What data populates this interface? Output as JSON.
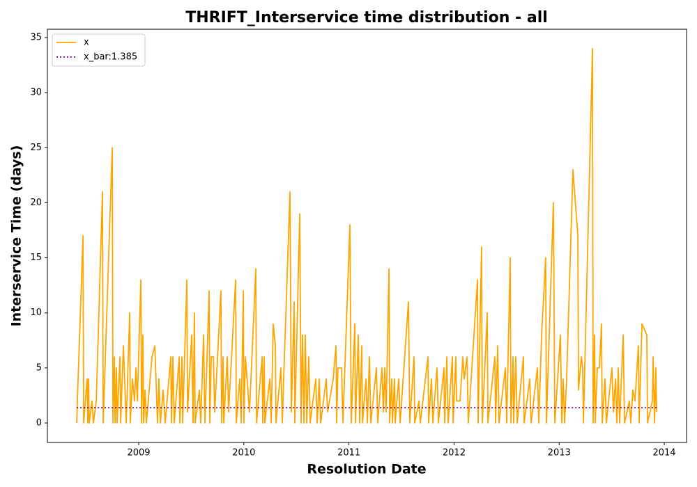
{
  "chart_data": {
    "type": "line",
    "title": "THRIFT_Interservice time distribution - all",
    "xlabel": "Resolution Date",
    "ylabel": "Interservice Time (days)",
    "xlim": [
      2008.131,
      2014.212
    ],
    "ylim": [
      -1.77,
      35.76
    ],
    "xticks": [
      2009,
      2010,
      2011,
      2012,
      2013,
      2014
    ],
    "yticks": [
      0,
      5,
      10,
      15,
      20,
      25,
      30,
      35
    ],
    "legend": "upper left",
    "series": [
      {
        "name": "x",
        "color": "#ffa500",
        "style": "solid",
        "x": [
          2008.41,
          2008.416,
          2008.47,
          2008.476,
          2008.509,
          2008.516,
          2008.523,
          2008.529,
          2008.556,
          2008.569,
          2008.596,
          2008.655,
          2008.662,
          2008.748,
          2008.755,
          2008.768,
          2008.775,
          2008.788,
          2008.794,
          2008.821,
          2008.828,
          2008.854,
          2008.881,
          2008.914,
          2008.92,
          2008.94,
          2008.96,
          2008.973,
          2008.987,
          2009.02,
          2009.027,
          2009.04,
          2009.046,
          2009.06,
          2009.073,
          2009.126,
          2009.153,
          2009.179,
          2009.192,
          2009.206,
          2009.232,
          2009.252,
          2009.305,
          2009.312,
          2009.325,
          2009.338,
          2009.385,
          2009.391,
          2009.411,
          2009.418,
          2009.458,
          2009.464,
          2009.504,
          2009.517,
          2009.53,
          2009.537,
          2009.577,
          2009.59,
          2009.617,
          2009.63,
          2009.67,
          2009.676,
          2009.69,
          2009.71,
          2009.723,
          2009.782,
          2009.789,
          2009.802,
          2009.809,
          2009.842,
          2009.855,
          2009.922,
          2009.928,
          2009.961,
          2009.975,
          2009.995,
          2010.001,
          2010.015,
          2010.054,
          2010.114,
          2010.121,
          2010.174,
          2010.18,
          2010.194,
          2010.2,
          2010.247,
          2010.26,
          2010.28,
          2010.3,
          2010.306,
          2010.353,
          2010.366,
          2010.379,
          2010.439,
          2010.452,
          2010.479,
          2010.485,
          2010.532,
          2010.545,
          2010.558,
          2010.572,
          2010.585,
          2010.598,
          2010.618,
          2010.631,
          2010.684,
          2010.698,
          2010.717,
          2010.731,
          2010.784,
          2010.797,
          2010.85,
          2010.877,
          2010.883,
          2010.896,
          2010.93,
          2010.943,
          2011.009,
          2011.022,
          2011.056,
          2011.062,
          2011.089,
          2011.102,
          2011.122,
          2011.129,
          2011.162,
          2011.175,
          2011.195,
          2011.208,
          2011.261,
          2011.274,
          2011.314,
          2011.327,
          2011.341,
          2011.354,
          2011.381,
          2011.387,
          2011.407,
          2011.414,
          2011.434,
          2011.44,
          2011.473,
          2011.487,
          2011.566,
          2011.579,
          2011.619,
          2011.626,
          2011.666,
          2011.679,
          2011.752,
          2011.758,
          2011.785,
          2011.798,
          2011.838,
          2011.851,
          2011.904,
          2011.911,
          2011.931,
          2011.944,
          2011.984,
          2011.991,
          2012.017,
          2012.024,
          2012.057,
          2012.083,
          2012.097,
          2012.123,
          2012.136,
          2012.223,
          2012.229,
          2012.262,
          2012.269,
          2012.316,
          2012.322,
          2012.388,
          2012.395,
          2012.415,
          2012.428,
          2012.488,
          2012.501,
          2012.534,
          2012.541,
          2012.561,
          2012.567,
          2012.587,
          2012.601,
          2012.66,
          2012.667,
          2012.72,
          2012.733,
          2012.793,
          2012.806,
          2012.833,
          2012.872,
          2012.879,
          2012.945,
          2012.959,
          2012.992,
          2013.012,
          2013.025,
          2013.038,
          2013.052,
          2013.071,
          2013.131,
          2013.178,
          2013.184,
          2013.211,
          2013.224,
          2013.231,
          2013.317,
          2013.323,
          2013.337,
          2013.343,
          2013.363,
          2013.383,
          2013.403,
          2013.41,
          2013.436,
          2013.449,
          2013.502,
          2013.516,
          2013.536,
          2013.549,
          2013.562,
          2013.575,
          2013.609,
          2013.622,
          2013.668,
          2013.681,
          2013.701,
          2013.721,
          2013.754,
          2013.761,
          2013.788,
          2013.834,
          2013.841,
          2013.887,
          2013.894,
          2013.907,
          2013.92,
          2013.927
        ],
        "values": [
          0,
          2,
          17,
          0,
          4,
          0,
          4,
          0,
          2,
          0,
          2,
          21,
          0,
          25,
          0,
          6,
          0,
          5,
          0,
          6,
          0,
          7,
          0,
          10,
          0,
          4,
          2,
          5,
          2,
          13,
          0,
          8,
          0,
          3,
          0,
          6,
          7,
          0,
          4,
          0,
          3,
          0,
          6,
          0,
          6,
          0,
          6,
          0,
          6,
          0,
          13,
          1,
          8,
          0,
          10,
          0,
          3,
          0,
          8,
          0,
          12,
          0,
          6,
          6,
          1,
          12,
          0,
          6,
          0,
          6,
          1,
          13,
          0,
          4,
          0,
          12,
          0,
          6,
          1,
          14,
          0,
          6,
          0,
          6,
          0,
          4,
          0,
          9,
          7,
          0,
          5,
          0,
          4,
          21,
          1,
          11,
          0,
          19,
          0,
          8,
          0,
          8,
          0,
          6,
          0,
          4,
          0,
          4,
          0,
          4,
          1,
          4,
          7,
          0,
          5,
          5,
          0,
          18,
          0,
          9,
          0,
          8,
          0,
          7,
          0,
          4,
          0,
          6,
          0,
          5,
          0,
          5,
          1,
          5,
          1,
          14,
          0,
          4,
          0,
          4,
          0,
          4,
          0,
          11,
          0,
          6,
          0,
          2,
          0,
          6,
          0,
          4,
          0,
          5,
          0,
          5,
          0,
          6,
          0,
          6,
          0,
          6,
          2,
          2,
          6,
          4,
          6,
          0,
          13,
          0,
          16,
          0,
          10,
          0,
          6,
          0,
          7,
          0,
          5,
          0,
          15,
          0,
          6,
          0,
          6,
          0,
          6,
          0,
          4,
          0,
          5,
          0,
          8,
          15,
          0,
          20,
          0,
          5,
          8,
          0,
          4,
          0,
          4,
          23,
          17,
          3,
          6,
          5,
          0,
          34,
          0,
          8,
          0,
          5,
          5,
          9,
          0,
          4,
          0,
          5,
          1,
          4,
          0,
          5,
          0,
          8,
          0,
          2,
          0,
          3,
          2,
          7,
          0,
          9,
          8,
          0,
          2,
          6,
          0,
          5,
          1
        ]
      },
      {
        "name": "x_bar:1.385",
        "color": "#800080",
        "style": "dotted",
        "x": [
          2008.41,
          2013.927
        ],
        "values": [
          1.385,
          1.385
        ]
      }
    ]
  }
}
